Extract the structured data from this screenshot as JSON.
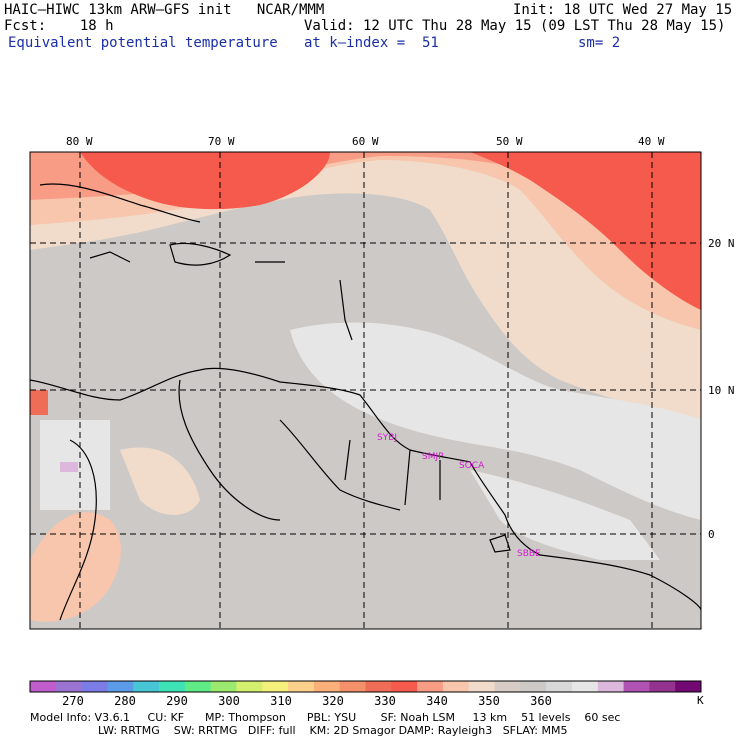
{
  "header": {
    "line1_left": "HAIC–HIWC 13km ARW–GFS init   NCAR/MMM",
    "line1_right": "Init: 18 UTC Wed 27 May 15",
    "line2_left": "Fcst:    18 h",
    "line2_right": "Valid: 12 UTC Thu 28 May 15 (09 LST Thu 28 May 15)",
    "line3_left": "Equivalent potential temperature",
    "line3_mid": "at k–index =  51",
    "line3_right": "sm= 2"
  },
  "map": {
    "lon_labels": [
      "80 W",
      "70 W",
      "60 W",
      "50 W",
      "40 W"
    ],
    "lat_labels": [
      "20 N",
      "10 N",
      "0"
    ],
    "cities": [
      "SYBJ",
      "SMJP",
      "SOCA",
      "SBBE"
    ]
  },
  "colorbar": {
    "colors": [
      "#c15ccd",
      "#9a73d3",
      "#7c7ce6",
      "#5b9be8",
      "#47c6d6",
      "#3de2b5",
      "#5feb85",
      "#9be96d",
      "#d4f06e",
      "#f5f07c",
      "#fcd08a",
      "#fbb079",
      "#f4906a",
      "#ef6c56",
      "#f55a4c",
      "#f99c86",
      "#f7c6ad",
      "#f1dccb",
      "#d7cdc6",
      "#cdc9c6",
      "#d8d8d8",
      "#e7e6e6",
      "#dcb8dc",
      "#b053b4",
      "#93338f",
      "#730a73"
    ],
    "labels": [
      "270",
      "280",
      "290",
      "300",
      "310",
      "320",
      "330",
      "340",
      "350",
      "360"
    ],
    "unit": "K"
  },
  "model_info": {
    "line1": "Model Info: V3.6.1     CU: KF      MP: Thompson      PBL: YSU       SF: Noah LSM     13 km    51 levels    60 sec",
    "line2": "LW: RRTMG    SW: RRTMG   DIFF: full    KM: 2D Smagor DAMP: Rayleigh3   SFLAY: MM5"
  }
}
